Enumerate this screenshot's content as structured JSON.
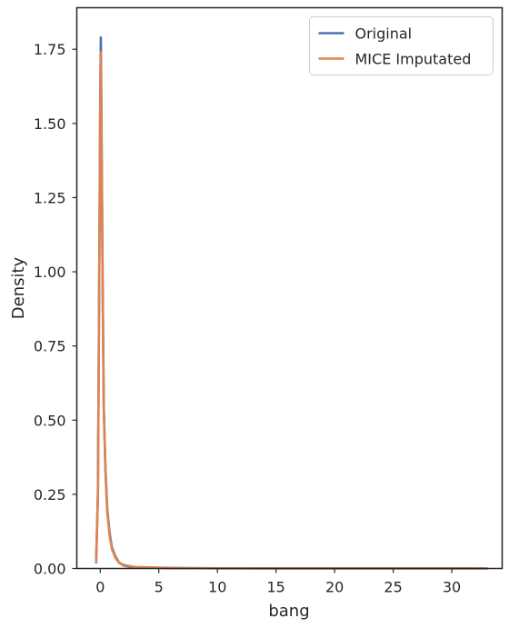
{
  "chart_data": {
    "type": "line",
    "title": "",
    "xlabel": "bang",
    "ylabel": "Density",
    "xlim": [
      -2.0,
      34.3
    ],
    "ylim": [
      0,
      1.89
    ],
    "xticks": [
      0,
      5,
      10,
      15,
      20,
      25,
      30
    ],
    "yticks": [
      0.0,
      0.25,
      0.5,
      0.75,
      1.0,
      1.25,
      1.5,
      1.75
    ],
    "xtick_labels": [
      "0",
      "5",
      "10",
      "15",
      "20",
      "25",
      "30"
    ],
    "ytick_labels": [
      "0.00",
      "0.25",
      "0.50",
      "0.75",
      "1.00",
      "1.25",
      "1.50",
      "1.75"
    ],
    "grid": false,
    "legend_position": "top-right",
    "series": [
      {
        "name": "Original",
        "color": "#4c72b0",
        "x": [
          -0.35,
          -0.2,
          -0.1,
          0.0,
          0.05,
          0.1,
          0.2,
          0.3,
          0.45,
          0.6,
          0.8,
          1.0,
          1.3,
          1.6,
          2.0,
          2.5,
          3.0,
          4.0,
          5.0,
          6.0,
          8.0,
          10.0,
          15.0,
          20.0,
          25.0,
          30.0,
          33.0
        ],
        "y": [
          0.02,
          0.25,
          0.9,
          1.6,
          1.79,
          1.55,
          1.0,
          0.55,
          0.33,
          0.2,
          0.12,
          0.07,
          0.04,
          0.02,
          0.01,
          0.006,
          0.004,
          0.003,
          0.002,
          0.001,
          0.001,
          0.0005,
          0.0003,
          0.0002,
          0.0001,
          0.0001,
          0.0
        ]
      },
      {
        "name": "MICE Imputated",
        "color": "#dd8452",
        "x": [
          -0.35,
          -0.2,
          -0.1,
          0.0,
          0.05,
          0.1,
          0.2,
          0.3,
          0.45,
          0.6,
          0.8,
          1.0,
          1.3,
          1.6,
          2.0,
          2.5,
          3.0,
          4.0,
          5.0,
          6.0,
          8.0,
          10.0,
          15.0,
          20.0,
          25.0,
          30.0,
          33.0
        ],
        "y": [
          0.02,
          0.24,
          0.88,
          1.55,
          1.74,
          1.5,
          0.98,
          0.54,
          0.32,
          0.19,
          0.11,
          0.065,
          0.035,
          0.02,
          0.012,
          0.008,
          0.005,
          0.004,
          0.003,
          0.002,
          0.001,
          0.0008,
          0.0004,
          0.0002,
          0.0001,
          0.0001,
          0.0
        ]
      }
    ]
  }
}
